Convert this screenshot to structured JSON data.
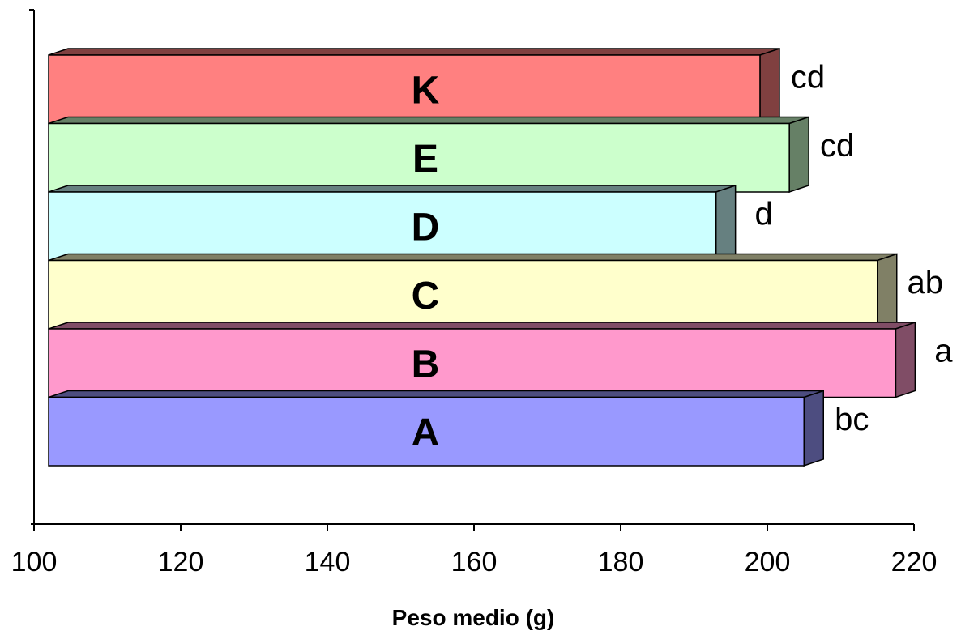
{
  "chart_data": {
    "type": "bar",
    "orientation": "horizontal",
    "style": "3d",
    "xlabel": "Peso medio (g)",
    "ylabel": "",
    "xlim": [
      100,
      220
    ],
    "x_ticks": [
      100,
      120,
      140,
      160,
      180,
      200,
      220
    ],
    "grid": false,
    "legend": "none",
    "categories": [
      "A",
      "B",
      "C",
      "D",
      "E",
      "K"
    ],
    "values": [
      205,
      217.5,
      215,
      193,
      203,
      199
    ],
    "significance_letters": [
      "bc",
      "a",
      "ab",
      "d",
      "cd",
      "cd"
    ],
    "colors": {
      "A": "#9999FF",
      "B": "#FF99CC",
      "C": "#FFFFCC",
      "D": "#CCFFFF",
      "E": "#CCFFCC",
      "K": "#FF8080"
    },
    "side_colors": {
      "A": "#4D4D80",
      "B": "#804D66",
      "C": "#808066",
      "D": "#668080",
      "E": "#668066",
      "K": "#804040"
    }
  }
}
